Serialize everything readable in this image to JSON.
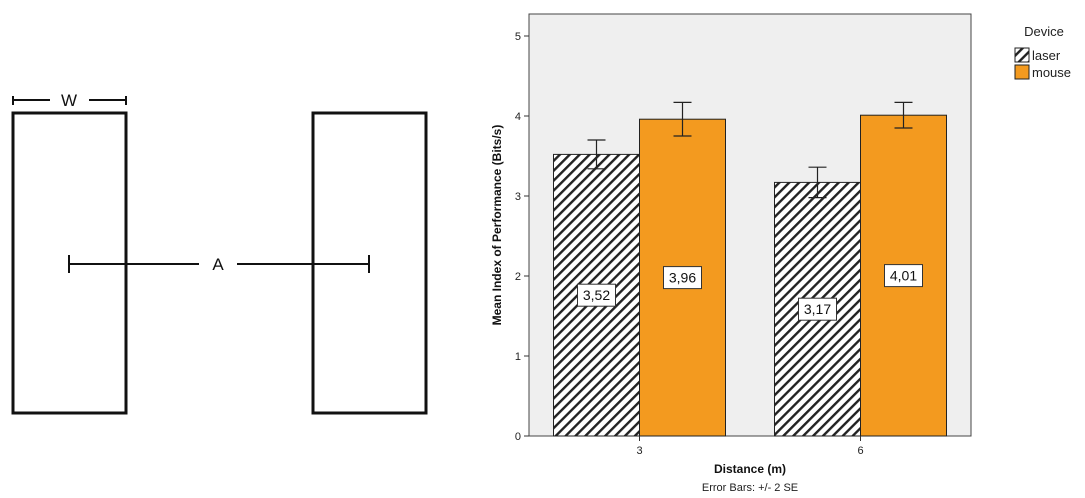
{
  "diagram": {
    "width_label": "W",
    "amplitude_label": "A"
  },
  "chart_data": {
    "type": "bar",
    "categories": [
      "3",
      "6"
    ],
    "series": [
      {
        "name": "laser",
        "values": [
          3.52,
          3.17
        ],
        "error": [
          0.18,
          0.19
        ],
        "value_labels": [
          "3,52",
          "3,17"
        ],
        "pattern": "diagonal-hatch"
      },
      {
        "name": "mouse",
        "values": [
          3.96,
          4.01
        ],
        "error": [
          0.21,
          0.16
        ],
        "value_labels": [
          "3,96",
          "4,01"
        ],
        "color": "#f39a1f"
      }
    ],
    "xlabel": "Distance (m)",
    "ylabel": "Mean Index of Performance (Bits/s)",
    "ylim": [
      0,
      5
    ],
    "yticks": [
      "0",
      "1",
      "2",
      "3",
      "4",
      "5"
    ],
    "legend_title": "Device",
    "legend_position": "top-right",
    "footnote": "Error Bars: +/- 2 SE",
    "plot_background": "#efefef",
    "grid": false
  }
}
